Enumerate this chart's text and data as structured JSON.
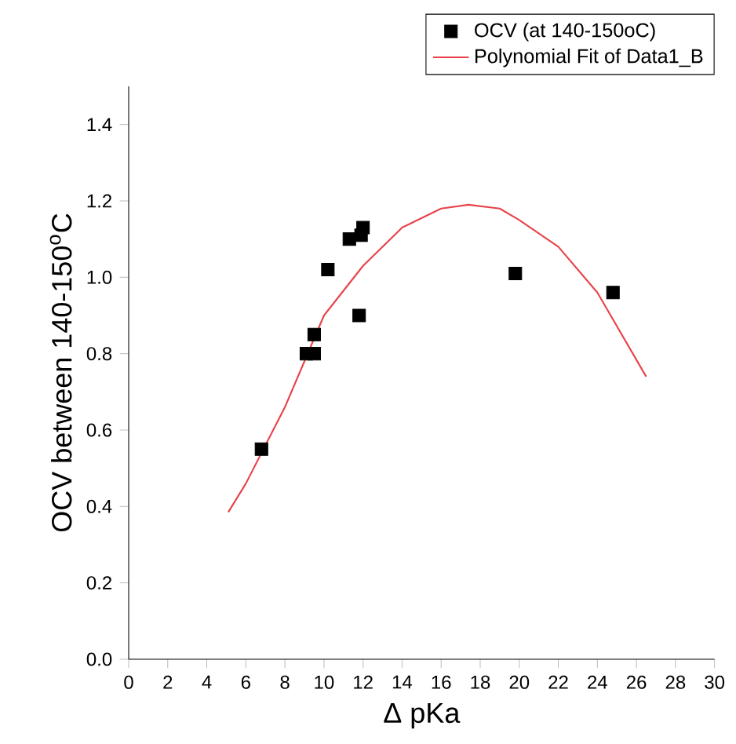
{
  "chart_data": {
    "type": "scatter",
    "xlabel": "Δ pKa",
    "ylabel": "OCV between 140-150$^{o}$C",
    "xlim": [
      0,
      30
    ],
    "ylim": [
      0,
      1.5
    ],
    "xticks": [
      0,
      2,
      4,
      6,
      8,
      10,
      12,
      14,
      16,
      18,
      20,
      22,
      24,
      26,
      28,
      30
    ],
    "yticks": [
      {
        "value": 0,
        "label": "0.0"
      },
      0.2,
      0.4,
      0.6,
      0.8,
      {
        "value": 1,
        "label": "1.0"
      },
      1.2,
      1.4
    ],
    "legend": "top right",
    "grid": false,
    "series": [
      {
        "name": "OCV (at 140-150oC)",
        "marker": "square",
        "color": "#000000",
        "x": [
          6.8,
          9.1,
          9.5,
          9.5,
          10.2,
          11.3,
          11.9,
          12.0,
          11.8,
          19.8,
          24.8
        ],
        "values": [
          0.55,
          0.8,
          0.8,
          0.85,
          1.02,
          1.1,
          1.11,
          1.13,
          0.9,
          1.01,
          0.96
        ]
      },
      {
        "name": "Polynomial Fit of Data1_B",
        "type": "line",
        "color": "#e8434a",
        "line_style": "solid",
        "x": [
          5.1,
          6,
          8,
          10,
          12,
          14,
          16,
          17.4,
          19,
          20,
          22,
          24,
          26.5
        ],
        "values": [
          0.385,
          0.46,
          0.66,
          0.9,
          1.03,
          1.13,
          1.18,
          1.19,
          1.18,
          1.15,
          1.08,
          0.96,
          0.74
        ]
      }
    ]
  }
}
